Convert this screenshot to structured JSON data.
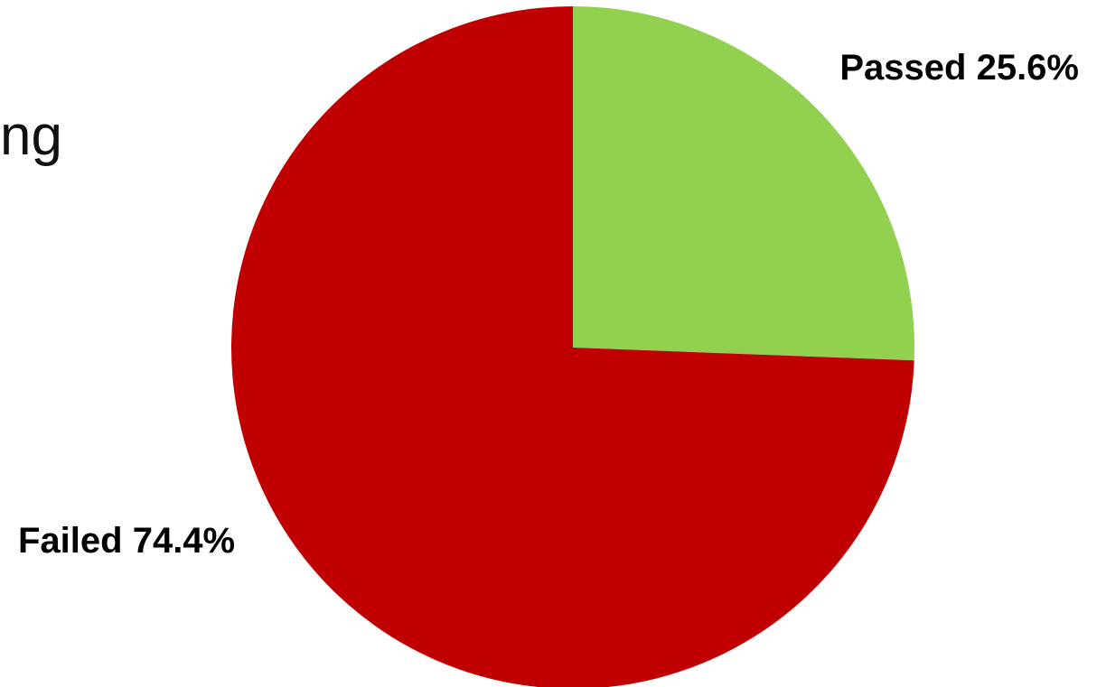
{
  "page": {
    "edge_text": "ng"
  },
  "chart_data": {
    "type": "pie",
    "title": "",
    "slices": [
      {
        "label": "Passed",
        "value": 25.6,
        "display": "Passed 25.6%",
        "color": "#92D050"
      },
      {
        "label": "Failed",
        "value": 74.4,
        "display": "Failed 74.4%",
        "color": "#C00000"
      }
    ],
    "start_angle_deg": 0,
    "direction": "clockwise",
    "legend": "none"
  }
}
